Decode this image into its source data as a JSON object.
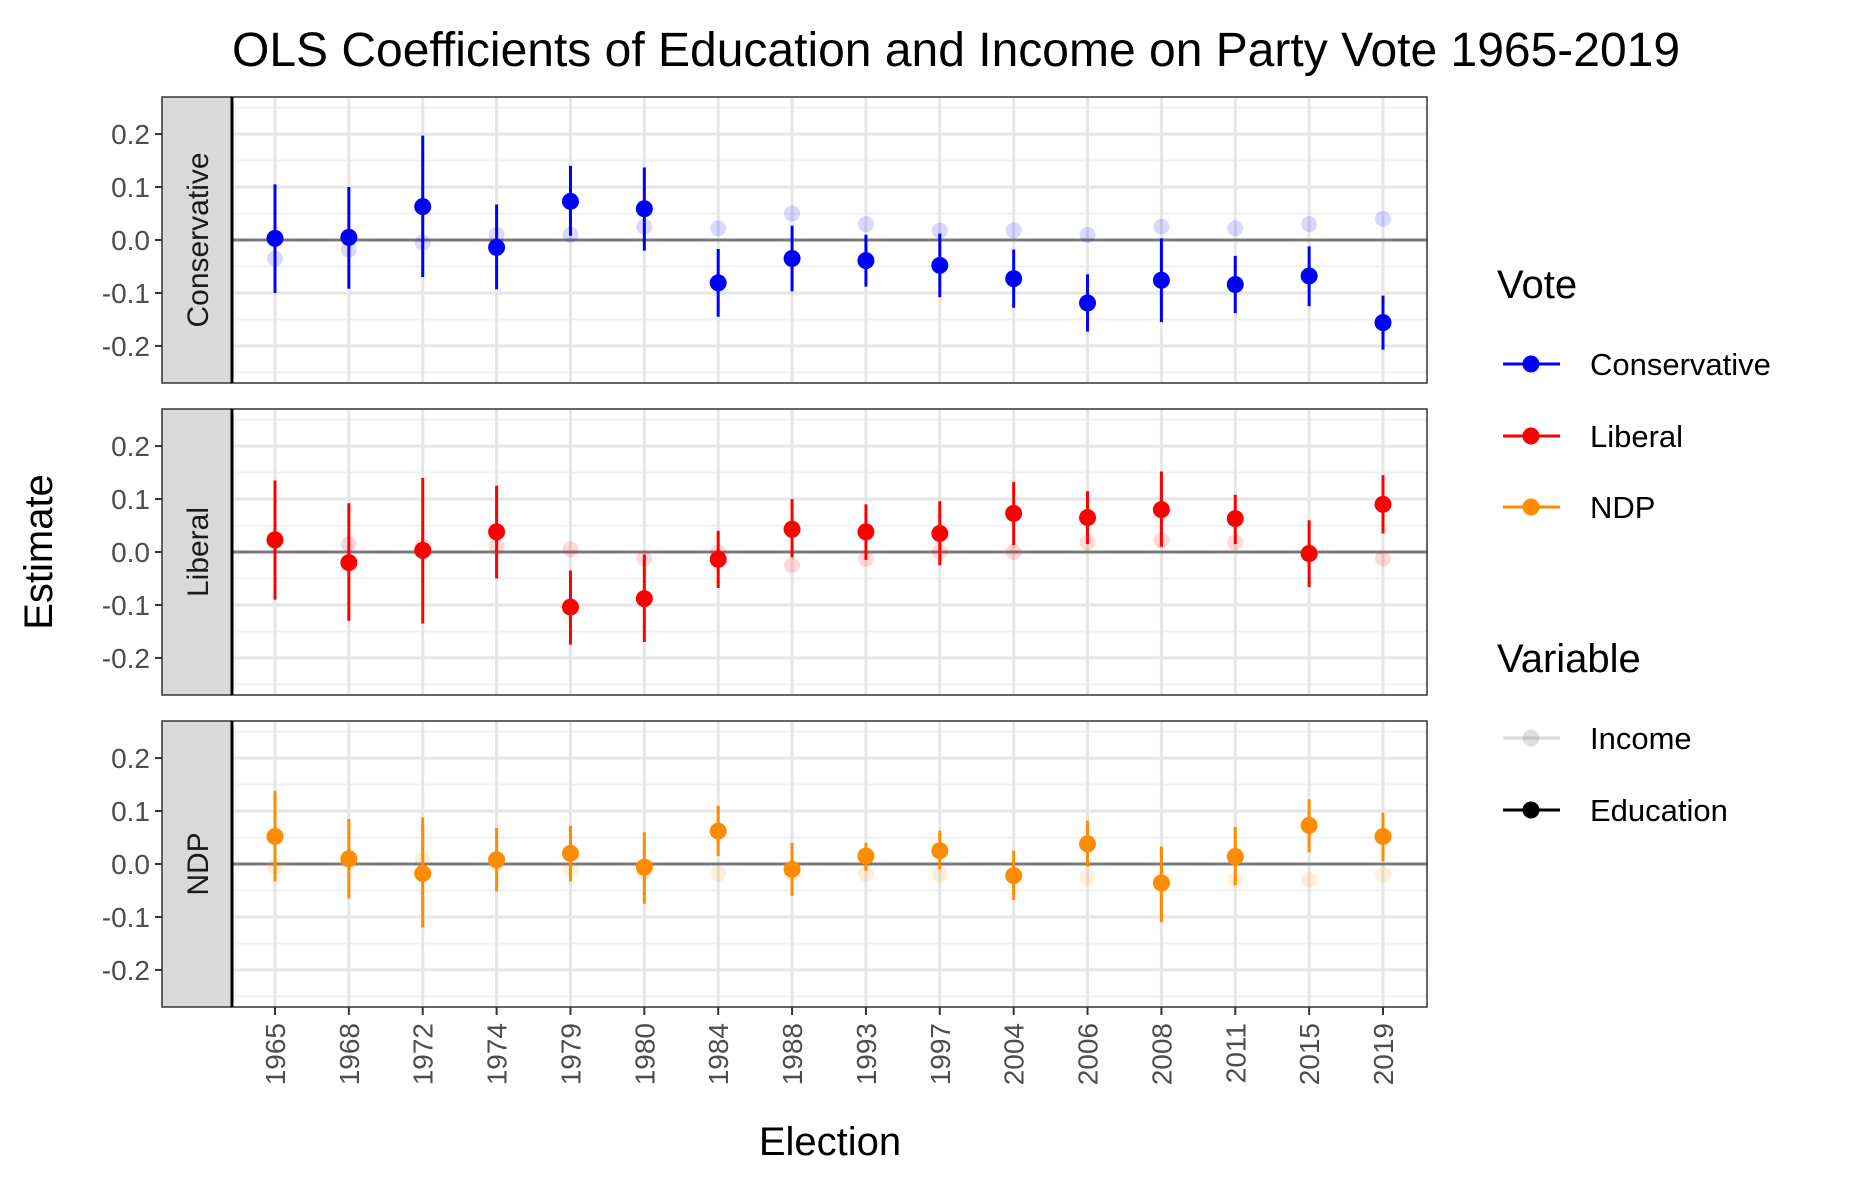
{
  "chart_data": {
    "type": "scatter",
    "title": "OLS Coefficients of Education and Income on Party Vote 1965-2019",
    "xlabel": "Election",
    "ylabel": "Estimate",
    "categories": [
      "1965",
      "1968",
      "1972",
      "1974",
      "1979",
      "1980",
      "1984",
      "1988",
      "1993",
      "1997",
      "2004",
      "2006",
      "2008",
      "2011",
      "2015",
      "2019"
    ],
    "ylim": [
      -0.27,
      0.27
    ],
    "yticks": [
      0.2,
      0.1,
      0.0,
      -0.1,
      -0.2
    ],
    "ytick_labels": [
      "0.2",
      "0.1",
      "0.0",
      "-0.1",
      "-0.2"
    ],
    "grid": true,
    "legend_placement": "right",
    "legend": {
      "vote_title": "Vote",
      "vote_items": [
        {
          "label": "Conservative",
          "color": "#0000ff"
        },
        {
          "label": "Liberal",
          "color": "#ff0000"
        },
        {
          "label": "NDP",
          "color": "#ff8c00"
        }
      ],
      "variable_title": "Variable",
      "variable_items": [
        {
          "label": "Income",
          "color": "#bfbfbf"
        },
        {
          "label": "Education",
          "color": "#000000"
        }
      ]
    },
    "panels": [
      {
        "strip": "Conservative",
        "color": "#0000ff",
        "education": [
          0.003,
          0.005,
          0.063,
          -0.014,
          0.073,
          0.059,
          -0.081,
          -0.035,
          -0.039,
          -0.048,
          -0.073,
          -0.119,
          -0.076,
          -0.084,
          -0.068,
          -0.156
        ],
        "education_low": [
          -0.1,
          -0.092,
          -0.07,
          -0.093,
          0.008,
          -0.02,
          -0.145,
          -0.097,
          -0.088,
          -0.108,
          -0.128,
          -0.173,
          -0.155,
          -0.138,
          -0.125,
          -0.207
        ],
        "education_high": [
          0.105,
          0.1,
          0.197,
          0.067,
          0.14,
          0.137,
          -0.017,
          0.027,
          0.01,
          0.012,
          -0.018,
          -0.065,
          0.003,
          -0.03,
          -0.012,
          -0.105
        ],
        "income": [
          -0.035,
          -0.018,
          -0.005,
          0.01,
          0.01,
          0.025,
          0.022,
          0.05,
          0.03,
          0.018,
          0.018,
          0.01,
          0.025,
          0.022,
          0.03,
          0.04
        ]
      },
      {
        "strip": "Liberal",
        "color": "#ff0000",
        "education": [
          0.023,
          -0.02,
          0.003,
          0.038,
          -0.104,
          -0.088,
          -0.014,
          0.043,
          0.038,
          0.035,
          0.073,
          0.065,
          0.08,
          0.063,
          -0.003,
          0.09
        ],
        "education_low": [
          -0.09,
          -0.13,
          -0.135,
          -0.05,
          -0.175,
          -0.17,
          -0.068,
          -0.01,
          -0.015,
          -0.025,
          0.013,
          0.015,
          0.01,
          0.015,
          -0.066,
          0.035
        ],
        "education_high": [
          0.135,
          0.092,
          0.14,
          0.125,
          -0.035,
          -0.005,
          0.04,
          0.1,
          0.09,
          0.096,
          0.132,
          0.115,
          0.152,
          0.108,
          0.06,
          0.145
        ],
        "income": [
          0.02,
          0.015,
          0.01,
          0.01,
          0.005,
          -0.012,
          0.0,
          -0.025,
          -0.013,
          0.0,
          0.0,
          0.018,
          0.022,
          0.018,
          0.0,
          -0.012
        ]
      },
      {
        "strip": "NDP",
        "color": "#ff8c00",
        "education": [
          0.052,
          0.01,
          -0.018,
          0.008,
          0.02,
          -0.006,
          0.062,
          -0.01,
          0.015,
          0.025,
          -0.022,
          0.038,
          -0.036,
          0.014,
          0.073,
          0.052
        ],
        "education_low": [
          -0.033,
          -0.065,
          -0.12,
          -0.052,
          -0.033,
          -0.075,
          0.015,
          -0.06,
          -0.013,
          -0.01,
          -0.068,
          -0.005,
          -0.11,
          -0.04,
          0.022,
          0.005
        ],
        "education_high": [
          0.138,
          0.085,
          0.088,
          0.068,
          0.072,
          0.06,
          0.11,
          0.04,
          0.04,
          0.063,
          0.025,
          0.082,
          0.033,
          0.07,
          0.122,
          0.097
        ],
        "income": [
          -0.005,
          0.005,
          0.008,
          0.0,
          -0.01,
          -0.015,
          -0.018,
          -0.018,
          -0.018,
          -0.02,
          -0.022,
          -0.024,
          -0.03,
          -0.03,
          -0.03,
          -0.02
        ]
      }
    ]
  }
}
